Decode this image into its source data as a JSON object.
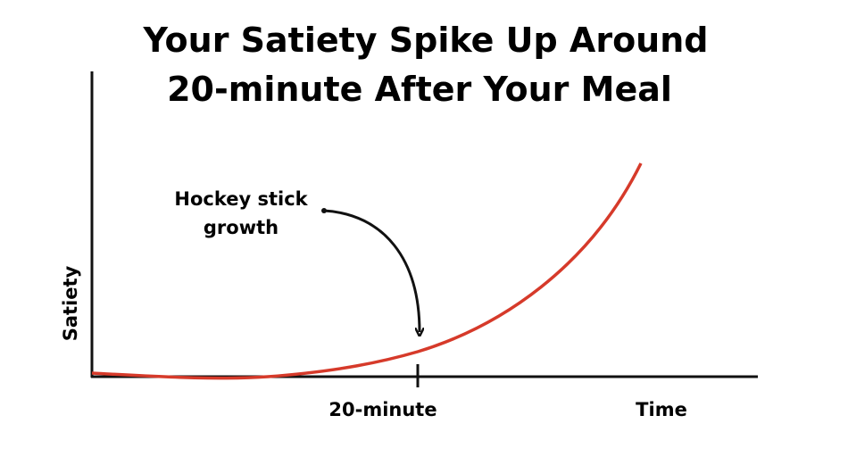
{
  "header": {
    "title_lines": [
      "Your Satiety Spike Up Around",
      "20-minute After Your Meal"
    ]
  },
  "annotation": {
    "lines": [
      "Hockey stick",
      "growth"
    ]
  },
  "axes": {
    "y_label": "Satiety",
    "x_label": "Time",
    "marker_label": "20-minute"
  }
}
